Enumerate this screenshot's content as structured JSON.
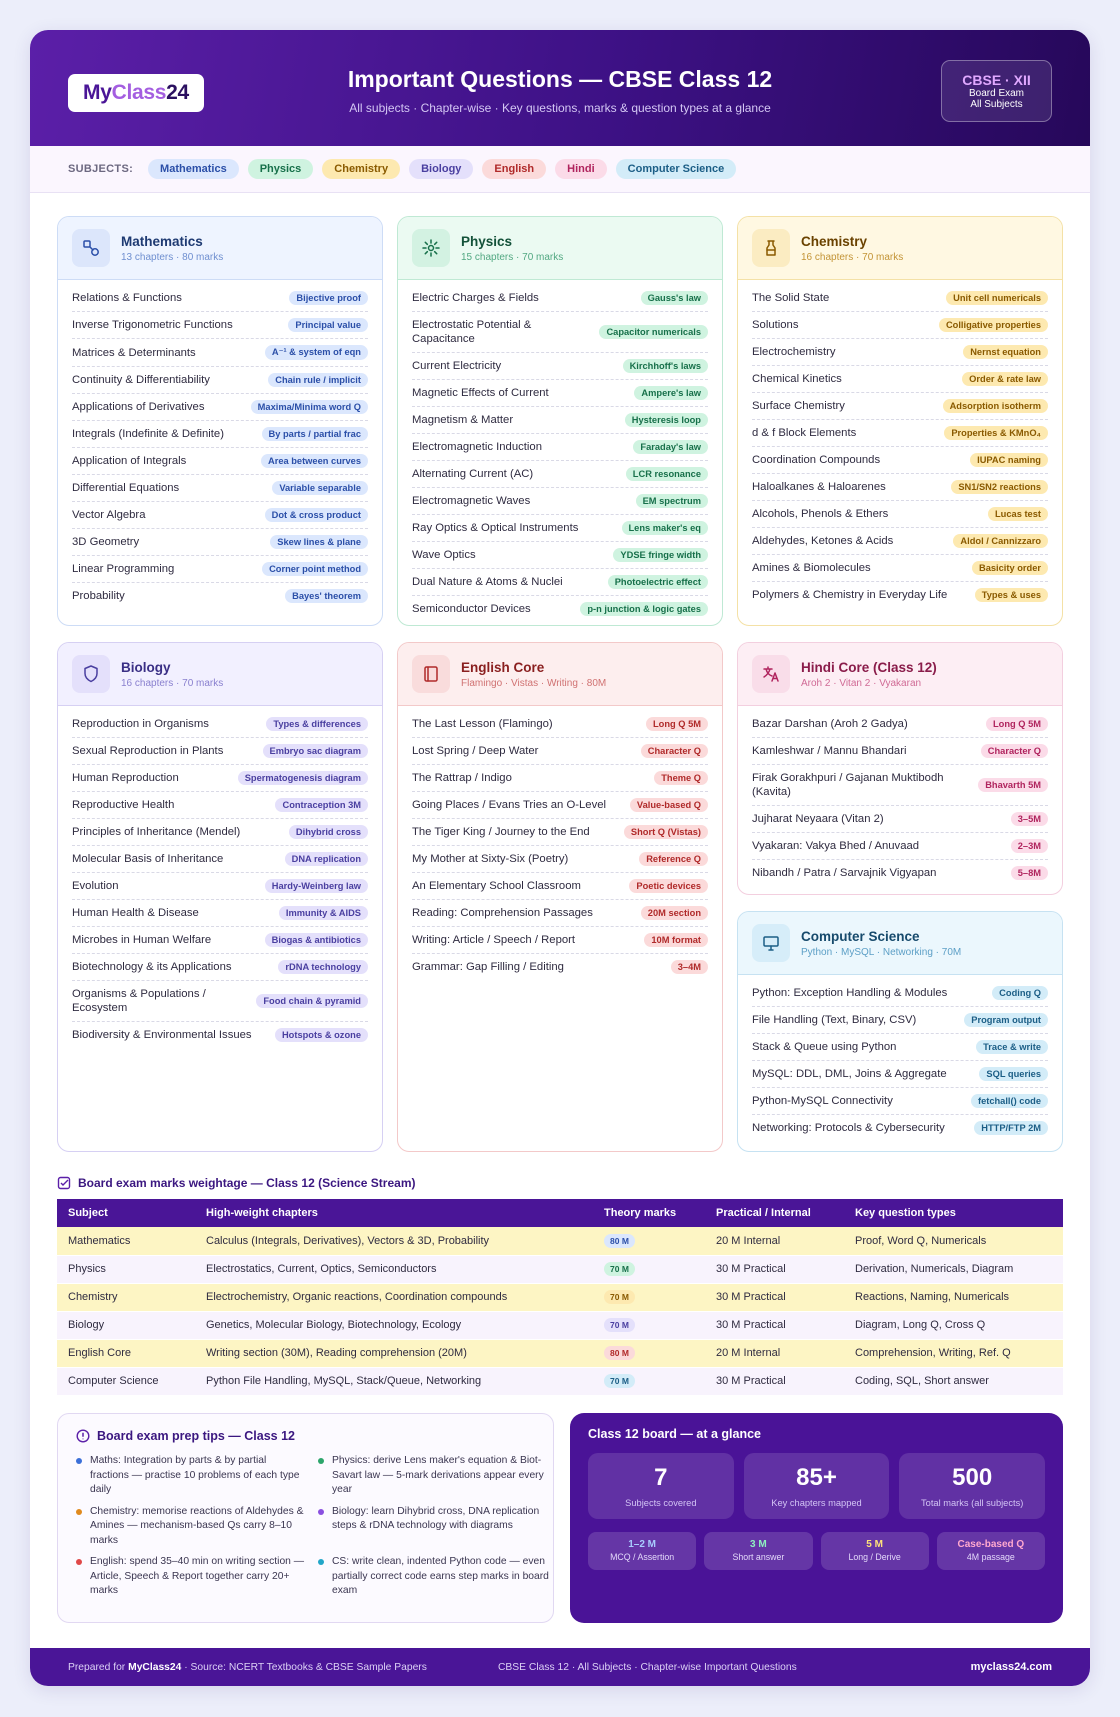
{
  "header": {
    "logo": [
      "My",
      "Class",
      "24"
    ],
    "title": "Important Questions — CBSE Class 12",
    "subtitle": "All subjects · Chapter-wise · Key questions, marks & question types at a glance",
    "badge": {
      "title": "CBSE · XII",
      "lines": [
        "Board Exam",
        "All Subjects"
      ]
    }
  },
  "subjects_bar": {
    "label": "SUBJECTS:",
    "items": [
      "Mathematics",
      "Physics",
      "Chemistry",
      "Biology",
      "English",
      "Hindi",
      "Computer Science"
    ]
  },
  "cards": [
    {
      "title": "Mathematics",
      "meta": "13 chapters · 80 marks",
      "rows": [
        [
          "Relations & Functions",
          "Bijective proof"
        ],
        [
          "Inverse Trigonometric Functions",
          "Principal value"
        ],
        [
          "Matrices & Determinants",
          "A⁻¹ & system of eqn"
        ],
        [
          "Continuity & Differentiability",
          "Chain rule / implicit"
        ],
        [
          "Applications of Derivatives",
          "Maxima/Minima word Q"
        ],
        [
          "Integrals (Indefinite & Definite)",
          "By parts / partial frac"
        ],
        [
          "Application of Integrals",
          "Area between curves"
        ],
        [
          "Differential Equations",
          "Variable separable"
        ],
        [
          "Vector Algebra",
          "Dot & cross product"
        ],
        [
          "3D Geometry",
          "Skew lines & plane"
        ],
        [
          "Linear Programming",
          "Corner point method"
        ],
        [
          "Probability",
          "Bayes' theorem"
        ]
      ]
    },
    {
      "title": "Physics",
      "meta": "15 chapters · 70 marks",
      "rows": [
        [
          "Electric Charges & Fields",
          "Gauss's law"
        ],
        [
          "Electrostatic Potential & Capacitance",
          "Capacitor numericals"
        ],
        [
          "Current Electricity",
          "Kirchhoff's laws"
        ],
        [
          "Magnetic Effects of Current",
          "Ampere's law"
        ],
        [
          "Magnetism & Matter",
          "Hysteresis loop"
        ],
        [
          "Electromagnetic Induction",
          "Faraday's law"
        ],
        [
          "Alternating Current (AC)",
          "LCR resonance"
        ],
        [
          "Electromagnetic Waves",
          "EM spectrum"
        ],
        [
          "Ray Optics & Optical Instruments",
          "Lens maker's eq"
        ],
        [
          "Wave Optics",
          "YDSE fringe width"
        ],
        [
          "Dual Nature & Atoms & Nuclei",
          "Photoelectric effect"
        ],
        [
          "Semiconductor Devices",
          "p-n junction & logic gates"
        ]
      ]
    },
    {
      "title": "Chemistry",
      "meta": "16 chapters · 70 marks",
      "rows": [
        [
          "The Solid State",
          "Unit cell numericals"
        ],
        [
          "Solutions",
          "Colligative properties"
        ],
        [
          "Electrochemistry",
          "Nernst equation"
        ],
        [
          "Chemical Kinetics",
          "Order & rate law"
        ],
        [
          "Surface Chemistry",
          "Adsorption isotherm"
        ],
        [
          "d & f Block Elements",
          "Properties & KMnO₄"
        ],
        [
          "Coordination Compounds",
          "IUPAC naming"
        ],
        [
          "Haloalkanes & Haloarenes",
          "SN1/SN2 reactions"
        ],
        [
          "Alcohols, Phenols & Ethers",
          "Lucas test"
        ],
        [
          "Aldehydes, Ketones & Acids",
          "Aldol / Cannizzaro"
        ],
        [
          "Amines & Biomolecules",
          "Basicity order"
        ],
        [
          "Polymers & Chemistry in Everyday Life",
          "Types & uses"
        ]
      ]
    },
    {
      "title": "Biology",
      "meta": "16 chapters · 70 marks",
      "rows": [
        [
          "Reproduction in Organisms",
          "Types & differences"
        ],
        [
          "Sexual Reproduction in Plants",
          "Embryo sac diagram"
        ],
        [
          "Human Reproduction",
          "Spermatogenesis diagram"
        ],
        [
          "Reproductive Health",
          "Contraception 3M"
        ],
        [
          "Principles of Inheritance (Mendel)",
          "Dihybrid cross"
        ],
        [
          "Molecular Basis of Inheritance",
          "DNA replication"
        ],
        [
          "Evolution",
          "Hardy-Weinberg law"
        ],
        [
          "Human Health & Disease",
          "Immunity & AIDS"
        ],
        [
          "Microbes in Human Welfare",
          "Biogas & antibiotics"
        ],
        [
          "Biotechnology & its Applications",
          "rDNA technology"
        ],
        [
          "Organisms & Populations / Ecosystem",
          "Food chain & pyramid"
        ],
        [
          "Biodiversity & Environmental Issues",
          "Hotspots & ozone"
        ]
      ]
    },
    {
      "title": "English Core",
      "meta": "Flamingo · Vistas · Writing · 80M",
      "rows": [
        [
          "The Last Lesson (Flamingo)",
          "Long Q 5M"
        ],
        [
          "Lost Spring / Deep Water",
          "Character Q"
        ],
        [
          "The Rattrap / Indigo",
          "Theme Q"
        ],
        [
          "Going Places / Evans Tries an O-Level",
          "Value-based Q"
        ],
        [
          "The Tiger King / Journey to the End",
          "Short Q (Vistas)"
        ],
        [
          "My Mother at Sixty-Six (Poetry)",
          "Reference Q"
        ],
        [
          "An Elementary School Classroom",
          "Poetic devices"
        ],
        [
          "Reading: Comprehension Passages",
          "20M section"
        ],
        [
          "Writing: Article / Speech / Report",
          "10M format"
        ],
        [
          "Grammar: Gap Filling / Editing",
          "3–4M"
        ]
      ]
    },
    {
      "title": "Hindi Core (Class 12)",
      "meta": "Aroh 2 · Vitan 2 · Vyakaran",
      "rows": [
        [
          "Bazar Darshan (Aroh 2 Gadya)",
          "Long Q 5M"
        ],
        [
          "Kamleshwar / Mannu Bhandari",
          "Character Q"
        ],
        [
          "Firak Gorakhpuri / Gajanan Muktibodh (Kavita)",
          "Bhavarth 5M"
        ],
        [
          "Jujharat Neyaara (Vitan 2)",
          "3–5M"
        ],
        [
          "Vyakaran: Vakya Bhed / Anuvaad",
          "2–3M"
        ],
        [
          "Nibandh / Patra / Sarvajnik Vigyapan",
          "5–8M"
        ]
      ]
    },
    {
      "title": "Computer Science",
      "meta": "Python · MySQL · Networking · 70M",
      "rows": [
        [
          "Python: Exception Handling & Modules",
          "Coding Q"
        ],
        [
          "File Handling (Text, Binary, CSV)",
          "Program output"
        ],
        [
          "Stack & Queue using Python",
          "Trace & write"
        ],
        [
          "MySQL: DDL, DML, Joins & Aggregate",
          "SQL queries"
        ],
        [
          "Python-MySQL Connectivity",
          "fetchall() code"
        ],
        [
          "Networking: Protocols & Cybersecurity",
          "HTTP/FTP 2M"
        ]
      ]
    }
  ],
  "table": {
    "title": "Board exam marks weightage — Class 12 (Science Stream)",
    "headers": [
      "Subject",
      "High-weight chapters",
      "Theory marks",
      "Practical / Internal",
      "Key question types"
    ],
    "rows": [
      [
        "Mathematics",
        "Calculus (Integrals, Derivatives), Vectors & 3D, Probability",
        "80 M",
        "20 M Internal",
        "Proof, Word Q, Numericals"
      ],
      [
        "Physics",
        "Electrostatics, Current, Optics, Semiconductors",
        "70 M",
        "30 M Practical",
        "Derivation, Numericals, Diagram"
      ],
      [
        "Chemistry",
        "Electrochemistry, Organic reactions, Coordination compounds",
        "70 M",
        "30 M Practical",
        "Reactions, Naming, Numericals"
      ],
      [
        "Biology",
        "Genetics, Molecular Biology, Biotechnology, Ecology",
        "70 M",
        "30 M Practical",
        "Diagram, Long Q, Cross Q"
      ],
      [
        "English Core",
        "Writing section (30M), Reading comprehension (20M)",
        "80 M",
        "20 M Internal",
        "Comprehension, Writing, Ref. Q"
      ],
      [
        "Computer Science",
        "Python File Handling, MySQL, Stack/Queue, Networking",
        "70 M",
        "30 M Practical",
        "Coding, SQL, Short answer"
      ]
    ]
  },
  "tips": {
    "title": "Board exam prep tips — Class 12",
    "items": [
      "Maths: Integration by parts & by partial fractions — practise 10 problems of each type daily",
      "Physics: derive Lens maker's equation & Biot-Savart law — 5-mark derivations appear every year",
      "Chemistry: memorise reactions of Aldehydes & Amines — mechanism-based Qs carry 8–10 marks",
      "Biology: learn Dihybrid cross, DNA replication steps & rDNA technology with diagrams",
      "English: spend 35–40 min on writing section — Article, Speech & Report together carry 20+ marks",
      "CS: write clean, indented Python code — even partially correct code earns step marks in board exam"
    ]
  },
  "glance": {
    "title": "Class 12 board — at a glance",
    "stats": [
      {
        "value": "7",
        "label": "Subjects covered"
      },
      {
        "value": "85+",
        "label": "Key chapters mapped"
      },
      {
        "value": "500",
        "label": "Total marks (all subjects)"
      }
    ],
    "types": [
      {
        "value": "1–2 M",
        "label": "MCQ / Assertion"
      },
      {
        "value": "3 M",
        "label": "Short answer"
      },
      {
        "value": "5 M",
        "label": "Long / Derive"
      },
      {
        "value": "Case-based Q",
        "label": "4M passage"
      }
    ]
  },
  "footer": {
    "left_prefix": "Prepared for",
    "left_brand": "MyClass24",
    "left_suffix": "· Source: NCERT Textbooks & CBSE Sample Papers",
    "center": "CBSE Class 12 · All Subjects · Chapter-wise Important Questions",
    "right": "myclass24.com"
  }
}
